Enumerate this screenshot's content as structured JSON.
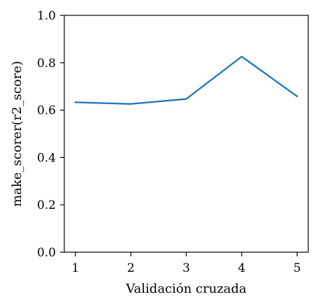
{
  "chart_data": {
    "type": "line",
    "title": "",
    "xlabel": "Validación cruzada",
    "ylabel": "make_scorer(r2_score)",
    "x": [
      1,
      2,
      3,
      4,
      5
    ],
    "x_ticks": [
      1,
      2,
      3,
      4,
      5
    ],
    "x_tick_labels": [
      "1",
      "2",
      "3",
      "4",
      "5"
    ],
    "xlim": [
      0.8,
      5.2
    ],
    "ylim": [
      0.0,
      1.0
    ],
    "y_ticks": [
      0.0,
      0.2,
      0.4,
      0.6,
      0.8,
      1.0
    ],
    "y_tick_labels": [
      "0.0",
      "0.2",
      "0.4",
      "0.6",
      "0.8",
      "1.0"
    ],
    "grid": false,
    "series": [
      {
        "values": [
          0.633,
          0.626,
          0.647,
          0.826,
          0.658
        ],
        "color": "#1f77b4"
      }
    ]
  }
}
